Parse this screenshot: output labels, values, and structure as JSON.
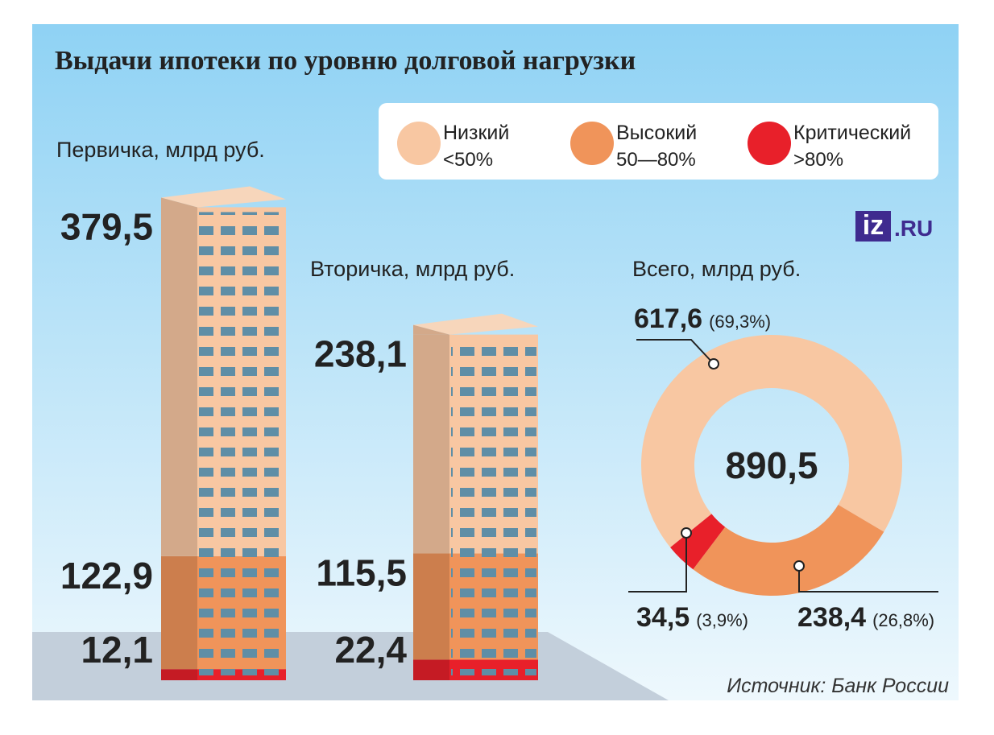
{
  "title": "Выдачи ипотеки по уровню долговой нагрузки",
  "source": "Источник: Банк России",
  "logo": "iz",
  "logo_domain": ".RU",
  "legend": [
    {
      "name": "Низкий",
      "range": "<50%",
      "color": "#f8c7a2"
    },
    {
      "name": "Высокий",
      "range": "50—80%",
      "color": "#f0945a"
    },
    {
      "name": "Критический",
      "range": ">80%",
      "color": "#e8202a"
    }
  ],
  "chart_data": [
    {
      "type": "building",
      "title": "Первичка, млрд руб.",
      "values": [
        379.5,
        122.9,
        12.1
      ],
      "value_labels": [
        "379,5",
        "122,9",
        "12,1"
      ]
    },
    {
      "type": "building",
      "title": "Вторичка, млрд руб.",
      "values": [
        238.1,
        115.5,
        22.4
      ],
      "value_labels": [
        "238,1",
        "115,5",
        "22,4"
      ]
    },
    {
      "type": "donut",
      "title": "Всего, млрд руб.",
      "values": [
        617.6,
        238.4,
        34.5
      ],
      "value_labels": [
        "617,6",
        "238,4",
        "34,5"
      ],
      "percents": [
        69.3,
        26.8,
        3.9
      ],
      "percent_labels": [
        "(69,3%)",
        "(26,8%)",
        "(3,9%)"
      ],
      "total": 890.5,
      "total_label": "890,5"
    }
  ]
}
